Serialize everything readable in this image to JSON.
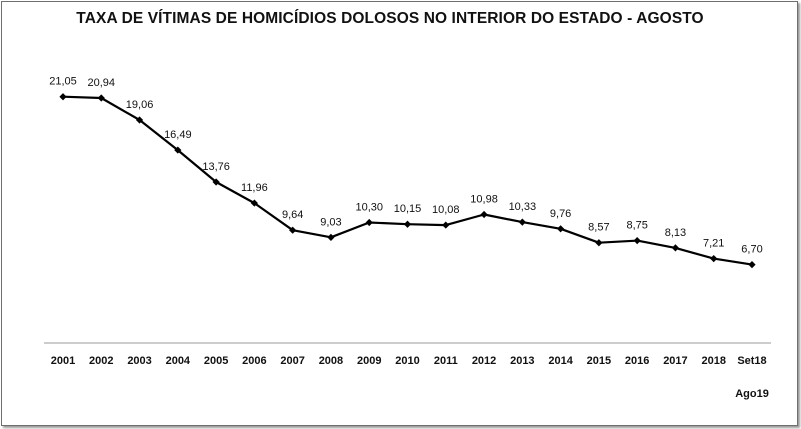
{
  "chart_data": {
    "type": "line",
    "title": "TAXA DE VÍTIMAS DE HOMICÍDIOS DOLOSOS NO INTERIOR DO ESTADO - AGOSTO",
    "xlabel": "",
    "ylabel": "",
    "categories": [
      "2001",
      "2002",
      "2003",
      "2004",
      "2005",
      "2006",
      "2007",
      "2008",
      "2009",
      "2010",
      "2011",
      "2012",
      "2013",
      "2014",
      "2015",
      "2016",
      "2017",
      "2018",
      "Set18"
    ],
    "series": [
      {
        "values": [
          21.05,
          20.94,
          19.06,
          16.49,
          13.76,
          11.96,
          9.64,
          9.03,
          10.3,
          10.15,
          10.08,
          10.98,
          10.33,
          9.76,
          8.57,
          8.75,
          8.13,
          7.21,
          6.7
        ],
        "labels": [
          "21,05",
          "20,94",
          "19,06",
          "16,49",
          "13,76",
          "11,96",
          "9,64",
          "9,03",
          "10,30",
          "10,15",
          "10,08",
          "10,98",
          "10,33",
          "9,76",
          "8,57",
          "8,75",
          "8,13",
          "7,21",
          "6,70"
        ]
      }
    ],
    "ylim": [
      0,
      24
    ],
    "grid": false,
    "line_color": "#000000",
    "marker": "diamond",
    "axis_note": "Ago19"
  }
}
